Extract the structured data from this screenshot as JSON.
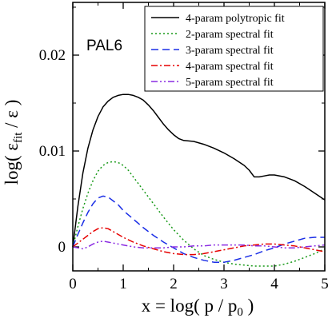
{
  "chart_data": {
    "type": "line",
    "annotation": "PAL6",
    "xlabel": {
      "main": "x = log( p / p",
      "sub": "0",
      "end": " )"
    },
    "ylabel": {
      "main": "log( ε",
      "sub": "fit",
      "end": " / ε )"
    },
    "xlim": [
      0,
      5
    ],
    "ylim": [
      -0.0025,
      0.0255
    ],
    "x_ticks": [
      {
        "value": 0,
        "label": "0"
      },
      {
        "value": 1,
        "label": "1"
      },
      {
        "value": 2,
        "label": "2"
      },
      {
        "value": 3,
        "label": "3"
      },
      {
        "value": 4,
        "label": "4"
      },
      {
        "value": 5,
        "label": "5"
      }
    ],
    "y_ticks": [
      {
        "value": 0,
        "label": "0"
      },
      {
        "value": 0.01,
        "label": "0.01"
      },
      {
        "value": 0.02,
        "label": "0.02"
      }
    ],
    "x_minor_step": 0.5,
    "y_minor_step": 0.005,
    "grid": false,
    "legend_position": "top-right",
    "series": [
      {
        "name": "4-param polytropic fit",
        "color": "#000000",
        "dash": "",
        "x": [
          0,
          0.1,
          0.2,
          0.3,
          0.4,
          0.5,
          0.6,
          0.7,
          0.8,
          0.9,
          1.0,
          1.1,
          1.2,
          1.3,
          1.4,
          1.5,
          1.6,
          1.7,
          1.8,
          1.9,
          2.0,
          2.1,
          2.2,
          2.4,
          2.6,
          2.8,
          3.0,
          3.2,
          3.4,
          3.5,
          3.6,
          3.7,
          3.8,
          3.9,
          4.0,
          4.2,
          4.4,
          4.6,
          4.8,
          5.0
        ],
        "y": [
          0,
          0.0042,
          0.0077,
          0.0103,
          0.0122,
          0.0136,
          0.0146,
          0.0152,
          0.0156,
          0.0158,
          0.0159,
          0.0159,
          0.0158,
          0.0156,
          0.0153,
          0.0148,
          0.0142,
          0.0135,
          0.0128,
          0.0122,
          0.0117,
          0.0113,
          0.0111,
          0.011,
          0.0107,
          0.0103,
          0.0098,
          0.0092,
          0.0085,
          0.008,
          0.0073,
          0.0073,
          0.0074,
          0.0075,
          0.0075,
          0.0073,
          0.0069,
          0.0063,
          0.0056,
          0.0049
        ]
      },
      {
        "name": "2-param spectral fit",
        "color": "#1a9a1a",
        "dash": "2,3",
        "x": [
          0,
          0.1,
          0.2,
          0.3,
          0.4,
          0.5,
          0.6,
          0.7,
          0.8,
          0.9,
          1.0,
          1.1,
          1.2,
          1.4,
          1.6,
          1.8,
          2.0,
          2.2,
          2.4,
          2.6,
          2.8,
          3.0,
          3.2,
          3.4,
          3.6,
          3.8,
          4.0,
          4.2,
          4.4,
          4.6,
          4.8,
          5.0
        ],
        "y": [
          0,
          0.0021,
          0.004,
          0.0056,
          0.0069,
          0.0079,
          0.0085,
          0.0088,
          0.0089,
          0.0088,
          0.0085,
          0.008,
          0.0073,
          0.0059,
          0.0045,
          0.0031,
          0.0018,
          0.0007,
          -0.0002,
          -0.0009,
          -0.0013,
          -0.0016,
          -0.0018,
          -0.0019,
          -0.002,
          -0.002,
          -0.002,
          -0.0018,
          -0.0015,
          -0.0011,
          -0.0007,
          -0.0002
        ]
      },
      {
        "name": "3-param spectral fit",
        "color": "#1a2ee6",
        "dash": "9,5",
        "x": [
          0,
          0.1,
          0.2,
          0.3,
          0.4,
          0.5,
          0.6,
          0.7,
          0.8,
          0.9,
          1.0,
          1.2,
          1.4,
          1.6,
          1.8,
          2.0,
          2.2,
          2.4,
          2.6,
          2.8,
          3.0,
          3.2,
          3.4,
          3.6,
          3.8,
          4.0,
          4.2,
          4.4,
          4.6,
          4.8,
          5.0
        ],
        "y": [
          0,
          0.0013,
          0.0025,
          0.0036,
          0.0045,
          0.0051,
          0.0053,
          0.0052,
          0.0048,
          0.0044,
          0.0038,
          0.0029,
          0.002,
          0.0012,
          0.0005,
          -0.0001,
          -0.0007,
          -0.0011,
          -0.0014,
          -0.0016,
          -0.0016,
          -0.0014,
          -0.0011,
          -0.0008,
          -0.0004,
          -0.0001,
          0.0003,
          0.0006,
          0.0009,
          0.001,
          0.001
        ]
      },
      {
        "name": "4-param spectral fit",
        "color": "#e60000",
        "dash": "8,3,2,3",
        "x": [
          0,
          0.1,
          0.2,
          0.3,
          0.4,
          0.5,
          0.6,
          0.7,
          0.8,
          0.9,
          1.0,
          1.2,
          1.4,
          1.6,
          1.8,
          2.0,
          2.2,
          2.4,
          2.6,
          2.8,
          3.0,
          3.2,
          3.4,
          3.6,
          3.8,
          4.0,
          4.2,
          4.4,
          4.6,
          4.8,
          5.0
        ],
        "y": [
          0,
          0.0004,
          0.0008,
          0.0012,
          0.0016,
          0.0019,
          0.002,
          0.0019,
          0.0016,
          0.0013,
          0.001,
          0.0005,
          0.0001,
          -0.0002,
          -0.0005,
          -0.0007,
          -0.0008,
          -0.0008,
          -0.0007,
          -0.0005,
          -0.0003,
          -0.0001,
          0.0001,
          0.0002,
          0.0003,
          0.0003,
          0.0002,
          0.0001,
          -0.0001,
          -0.0003,
          -0.0005
        ]
      },
      {
        "name": "5-param spectral fit",
        "color": "#8a2be2",
        "dash": "8,3,2,3,2,3",
        "x": [
          0,
          0.1,
          0.2,
          0.3,
          0.4,
          0.5,
          0.6,
          0.7,
          0.8,
          0.9,
          1.0,
          1.2,
          1.4,
          1.6,
          1.8,
          2.0,
          2.2,
          2.4,
          2.6,
          2.8,
          3.0,
          3.2,
          3.4,
          3.6,
          3.8,
          4.0,
          4.2,
          4.4,
          4.6,
          4.8,
          5.0
        ],
        "y": [
          0,
          -0.0001,
          -0.0002,
          0.0,
          0.0003,
          0.0005,
          0.0006,
          0.0005,
          0.0004,
          0.0003,
          0.0002,
          0.0,
          -0.0001,
          -0.0001,
          -0.0001,
          0.0,
          0.0,
          0.0001,
          0.0001,
          0.0002,
          0.0002,
          0.0002,
          0.0002,
          0.0001,
          0.0001,
          0.0,
          -0.0001,
          -0.0001,
          0.0,
          0.0001,
          0.0002
        ]
      }
    ]
  }
}
